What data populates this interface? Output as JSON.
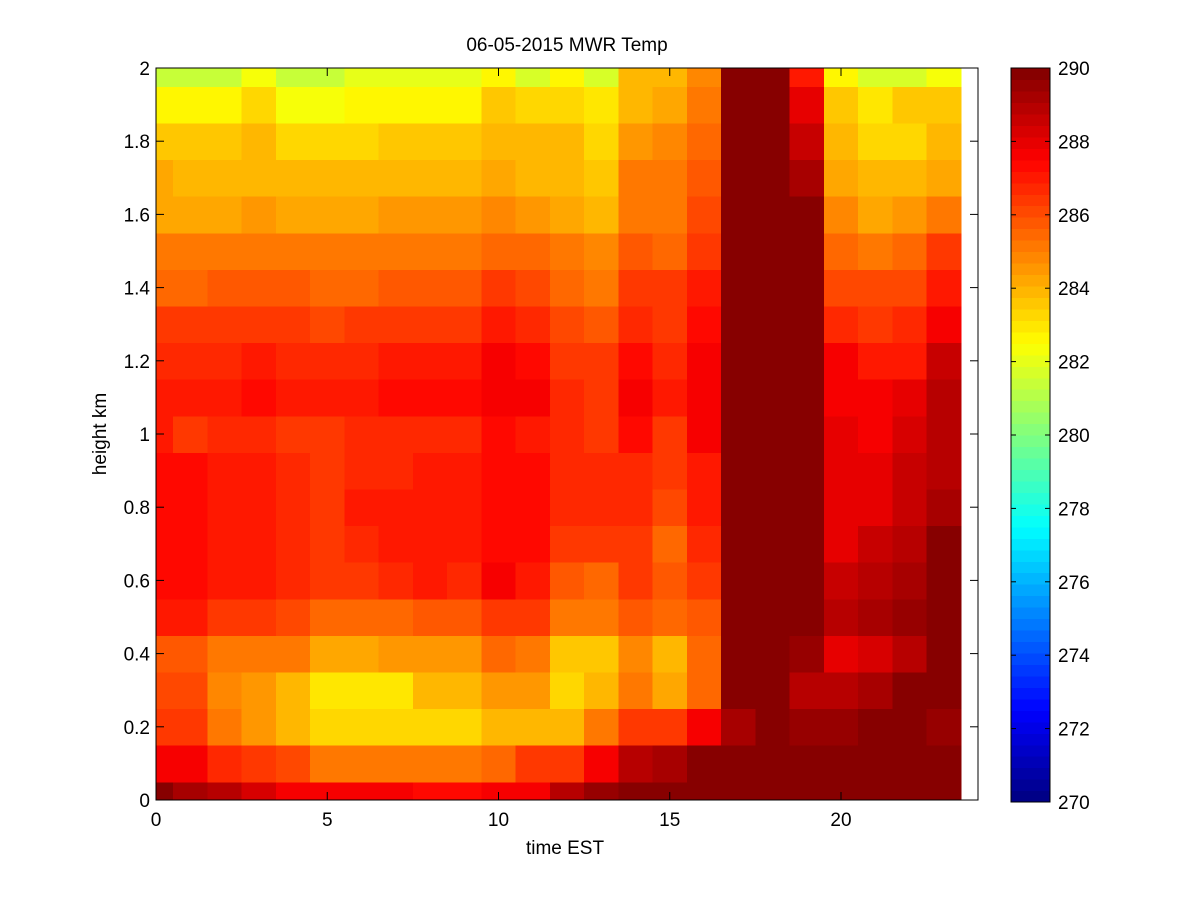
{
  "chart_data": {
    "type": "heatmap",
    "title": "06-05-2015 MWR Temp",
    "xlabel": "time EST",
    "ylabel": "height km",
    "xlim": [
      0,
      24
    ],
    "ylim": [
      0,
      2
    ],
    "x_ticks": [
      "0",
      "5",
      "10",
      "15",
      "20"
    ],
    "y_ticks": [
      "0",
      "0.2",
      "0.4",
      "0.6",
      "0.8",
      "1",
      "1.2",
      "1.4",
      "1.6",
      "1.8",
      "2"
    ],
    "colormap": "jet",
    "clim": [
      270,
      290
    ],
    "colorbar_ticks": [
      "270",
      "272",
      "274",
      "276",
      "278",
      "280",
      "282",
      "284",
      "286",
      "288",
      "290"
    ],
    "x": [
      0,
      0.5,
      1.5,
      2.5,
      3.5,
      4.5,
      5.5,
      6.5,
      7.5,
      8.5,
      9.5,
      10.5,
      11.5,
      12.5,
      13.5,
      14.5,
      15.5,
      16.5,
      17.5,
      18.5,
      19.5,
      20.5,
      21.5,
      22.5,
      23.5
    ],
    "y": [
      0,
      0.05,
      0.15,
      0.25,
      0.35,
      0.45,
      0.55,
      0.65,
      0.75,
      0.85,
      0.95,
      1.05,
      1.15,
      1.25,
      1.35,
      1.45,
      1.55,
      1.65,
      1.75,
      1.85,
      1.95,
      2.0
    ],
    "z": [
      [
        290.3,
        289.3,
        288.8,
        288.3,
        287.8,
        287.5,
        287.5,
        287.5,
        287.2,
        287.2,
        287.5,
        287.8,
        288.8,
        289.5,
        290.0,
        290.0,
        290.0,
        290.0,
        290.0,
        290.0,
        290.0,
        290.0,
        290.0,
        290.0
      ],
      [
        287.8,
        287.8,
        286.8,
        286.5,
        286.0,
        285.3,
        285.3,
        285.3,
        285.3,
        285.3,
        285.5,
        286.3,
        286.5,
        287.8,
        289.0,
        289.3,
        289.8,
        289.8,
        290.3,
        290.3,
        290.3,
        290.3,
        290.3,
        290.3
      ],
      [
        286.3,
        286.3,
        285.3,
        284.5,
        284.0,
        283.3,
        283.3,
        283.3,
        283.3,
        283.3,
        284.0,
        284.0,
        284.0,
        285.0,
        286.3,
        286.3,
        287.5,
        289.3,
        290.3,
        289.5,
        289.5,
        290.3,
        290.3,
        289.5
      ],
      [
        286.0,
        286.0,
        284.8,
        284.5,
        284.0,
        283.0,
        283.0,
        283.0,
        283.8,
        283.8,
        284.5,
        284.5,
        283.3,
        283.8,
        285.0,
        284.3,
        285.5,
        290.0,
        290.0,
        289.0,
        288.8,
        289.3,
        289.8,
        289.8
      ],
      [
        285.8,
        285.8,
        285.3,
        285.3,
        285.0,
        284.3,
        284.3,
        284.5,
        284.5,
        284.5,
        285.5,
        285.0,
        283.5,
        283.5,
        284.8,
        284.0,
        285.5,
        290.0,
        290.0,
        289.5,
        288.0,
        288.3,
        289.0,
        290.0
      ],
      [
        287.0,
        287.0,
        286.5,
        286.5,
        286.0,
        285.5,
        285.5,
        285.5,
        285.8,
        285.8,
        286.5,
        286.3,
        285.3,
        285.0,
        285.8,
        285.5,
        285.8,
        290.0,
        290.0,
        290.0,
        289.0,
        289.3,
        289.5,
        290.0
      ],
      [
        287.3,
        287.3,
        287.0,
        287.0,
        286.8,
        286.5,
        286.5,
        286.8,
        287.0,
        286.8,
        287.5,
        287.0,
        285.8,
        285.5,
        286.3,
        285.8,
        286.5,
        290.0,
        290.0,
        290.0,
        288.5,
        288.8,
        289.3,
        290.0
      ],
      [
        287.3,
        287.3,
        287.0,
        287.0,
        286.8,
        286.5,
        286.8,
        287.0,
        287.0,
        287.0,
        287.3,
        287.3,
        286.5,
        286.3,
        286.5,
        285.5,
        286.8,
        290.0,
        290.0,
        290.0,
        288.0,
        288.5,
        289.0,
        289.8
      ],
      [
        287.3,
        287.3,
        287.0,
        287.0,
        286.8,
        286.5,
        287.0,
        287.0,
        287.0,
        287.0,
        287.3,
        287.3,
        286.8,
        286.8,
        286.8,
        286.0,
        287.0,
        290.0,
        290.0,
        290.0,
        288.0,
        288.0,
        288.5,
        289.3
      ],
      [
        287.3,
        287.3,
        287.0,
        287.0,
        286.8,
        286.5,
        286.8,
        286.8,
        287.0,
        287.0,
        287.3,
        287.3,
        286.8,
        286.8,
        286.8,
        286.3,
        287.0,
        290.0,
        290.0,
        290.0,
        288.0,
        288.0,
        288.5,
        289.0
      ],
      [
        287.0,
        286.3,
        286.8,
        286.8,
        286.5,
        286.3,
        286.8,
        286.8,
        286.8,
        286.8,
        287.3,
        287.0,
        286.8,
        286.5,
        287.3,
        286.5,
        287.5,
        290.0,
        290.0,
        290.0,
        288.0,
        287.8,
        288.3,
        289.0
      ],
      [
        287.0,
        287.0,
        287.0,
        287.3,
        287.0,
        287.0,
        287.0,
        287.3,
        287.3,
        287.3,
        287.8,
        287.5,
        286.8,
        286.5,
        287.5,
        287.0,
        287.8,
        290.0,
        290.0,
        290.0,
        287.8,
        287.8,
        288.0,
        289.0
      ],
      [
        286.8,
        286.8,
        286.8,
        287.0,
        286.8,
        286.8,
        286.8,
        287.0,
        287.0,
        287.0,
        287.5,
        287.3,
        286.5,
        286.3,
        287.3,
        286.8,
        287.5,
        290.0,
        290.0,
        290.0,
        287.5,
        287.0,
        287.0,
        288.5
      ],
      [
        286.3,
        286.3,
        286.3,
        286.3,
        286.3,
        286.0,
        286.3,
        286.5,
        286.5,
        286.5,
        287.0,
        286.8,
        286.0,
        285.8,
        286.8,
        286.5,
        287.3,
        290.0,
        290.0,
        290.0,
        286.8,
        286.3,
        286.8,
        287.8
      ],
      [
        285.5,
        285.5,
        285.8,
        285.8,
        285.8,
        285.5,
        285.5,
        285.8,
        285.8,
        285.8,
        286.3,
        286.0,
        285.5,
        285.3,
        286.3,
        286.3,
        287.0,
        290.0,
        290.0,
        290.0,
        286.0,
        286.0,
        286.0,
        287.0
      ],
      [
        285.0,
        285.0,
        285.0,
        285.0,
        285.0,
        285.0,
        285.0,
        285.3,
        285.3,
        285.3,
        285.5,
        285.5,
        285.0,
        284.8,
        285.8,
        285.5,
        286.5,
        290.0,
        290.0,
        290.0,
        285.5,
        285.0,
        285.5,
        286.3
      ],
      [
        284.3,
        284.3,
        284.3,
        284.5,
        284.3,
        284.3,
        284.3,
        284.5,
        284.5,
        284.5,
        284.8,
        284.5,
        284.3,
        284.0,
        285.3,
        285.3,
        286.0,
        290.0,
        290.0,
        290.3,
        284.8,
        284.3,
        284.5,
        285.0
      ],
      [
        284.3,
        283.8,
        283.8,
        283.8,
        283.8,
        283.8,
        283.8,
        284.0,
        284.0,
        284.0,
        284.3,
        284.0,
        284.0,
        283.5,
        285.0,
        285.0,
        285.8,
        290.0,
        290.0,
        289.3,
        284.3,
        283.8,
        284.0,
        284.3
      ],
      [
        283.5,
        283.5,
        283.5,
        283.8,
        283.3,
        283.3,
        283.3,
        283.5,
        283.5,
        283.5,
        283.8,
        283.8,
        283.8,
        283.3,
        284.5,
        284.8,
        285.5,
        290.0,
        290.0,
        288.5,
        283.8,
        283.3,
        283.3,
        283.8
      ],
      [
        282.5,
        282.5,
        282.5,
        283.3,
        282.3,
        282.3,
        282.8,
        282.8,
        282.8,
        282.8,
        283.5,
        283.3,
        283.3,
        283.0,
        284.0,
        284.3,
        285.0,
        290.0,
        290.0,
        288.0,
        283.5,
        283.0,
        283.5,
        283.5
      ],
      [
        281.5,
        281.5,
        281.5,
        282.3,
        281.5,
        281.5,
        282.0,
        282.0,
        282.0,
        282.0,
        282.5,
        281.8,
        282.8,
        281.8,
        283.8,
        284.0,
        284.8,
        290.0,
        290.0,
        287.0,
        282.5,
        281.8,
        281.8,
        282.3
      ]
    ]
  }
}
